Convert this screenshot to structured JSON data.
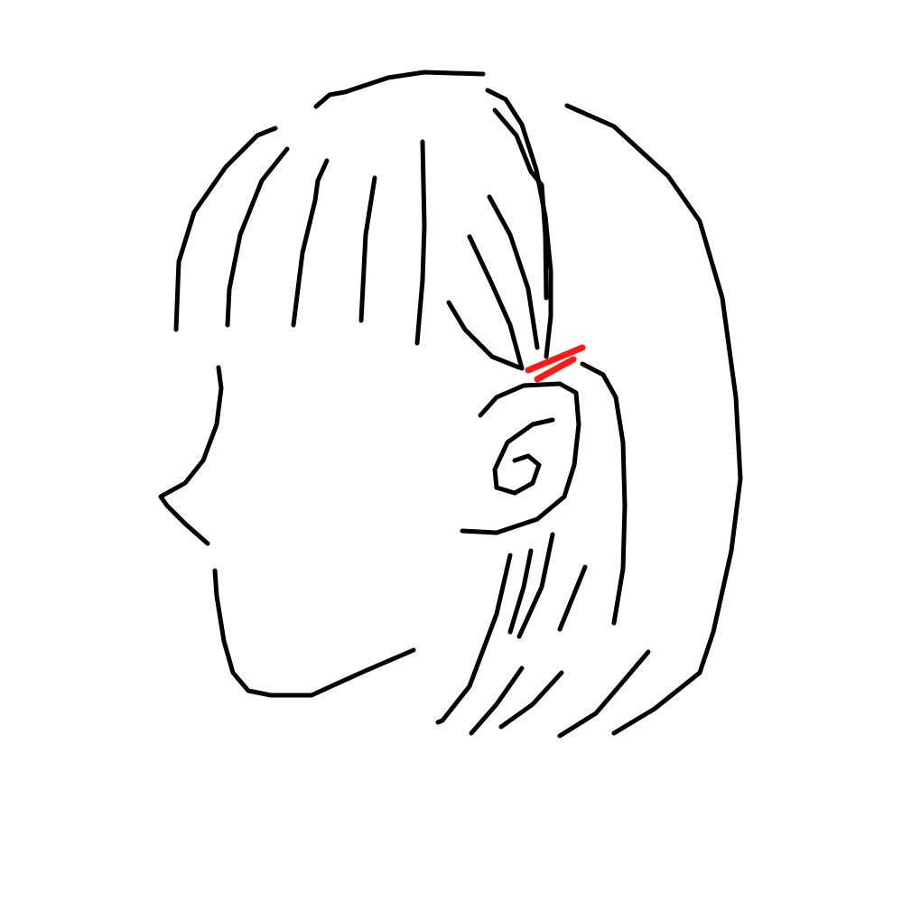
{
  "drawing": {
    "stroke_color": "#000000",
    "accent_color": "#ff1a1a",
    "background": "#ffffff"
  }
}
